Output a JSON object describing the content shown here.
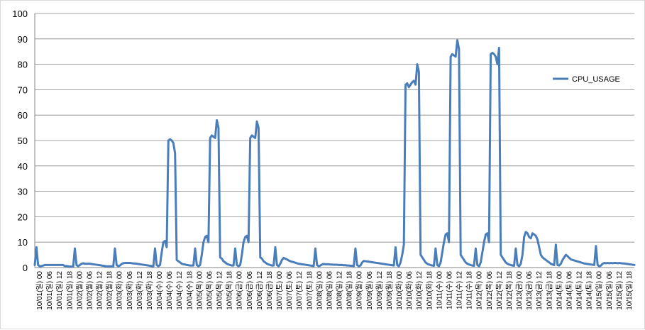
{
  "chart_data": {
    "type": "line",
    "ylim": [
      0,
      100
    ],
    "yticks": [
      0,
      10,
      20,
      30,
      40,
      50,
      60,
      70,
      80,
      90,
      100
    ],
    "grid": true,
    "legend_position": "right",
    "x_tick_labels": [
      "10/01(일) 00",
      "10/01(일) 06",
      "10/01(일) 12",
      "10/01(일) 18",
      "10/02(월) 00",
      "10/02(월) 06",
      "10/02(월) 12",
      "10/02(월) 18",
      "10/03(화) 00",
      "10/03(화) 06",
      "10/03(화) 12",
      "10/03(화) 18",
      "10/04(수) 00",
      "10/04(수) 06",
      "10/04(수) 12",
      "10/04(수) 18",
      "10/05(목) 00",
      "10/05(목) 06",
      "10/05(목) 12",
      "10/05(목) 18",
      "10/06(금) 00",
      "10/06(금) 06",
      "10/06(금) 12",
      "10/06(금) 18",
      "10/07(토) 00",
      "10/07(토) 06",
      "10/07(토) 12",
      "10/07(토) 18",
      "10/08(일) 00",
      "10/08(일) 06",
      "10/08(일) 12",
      "10/08(일) 18",
      "10/09(월) 00",
      "10/09(월) 06",
      "10/09(월) 12",
      "10/09(월) 18",
      "10/10(화) 00",
      "10/10(화) 06",
      "10/10(화) 12",
      "10/10(화) 18",
      "10/11(수) 00",
      "10/11(수) 06",
      "10/11(수) 12",
      "10/11(수) 18",
      "10/12(목) 00",
      "10/12(목) 06",
      "10/12(목) 12",
      "10/12(목) 18",
      "10/13(금) 00",
      "10/13(금) 06",
      "10/13(금) 12",
      "10/13(금) 18",
      "10/14(토) 00",
      "10/14(토) 06",
      "10/14(토) 12",
      "10/14(토) 18",
      "10/15(일) 00",
      "10/15(일) 06",
      "10/15(일) 12",
      "10/15(일) 18"
    ],
    "series": [
      {
        "name": "CPU_USAGE",
        "color": "#4a7ebb",
        "values": [
          1,
          8,
          1,
          0.5,
          0.6,
          0.8,
          1,
          1,
          1,
          1,
          1,
          1,
          1,
          1,
          1,
          1,
          1,
          1,
          0.6,
          0.6,
          0.5,
          0.4,
          0.4,
          0.4,
          7.5,
          1,
          0.5,
          1,
          1.5,
          1.7,
          1.5,
          1.5,
          1.5,
          1.5,
          1.4,
          1.3,
          1.2,
          1.1,
          1,
          0.9,
          0.8,
          0.7,
          0.6,
          0.5,
          0.5,
          0.5,
          0.5,
          0.4,
          7.5,
          1,
          0.5,
          0.8,
          1.4,
          1.7,
          1.8,
          1.8,
          1.8,
          1.8,
          1.7,
          1.6,
          1.6,
          1.5,
          1.4,
          1.3,
          1.2,
          1.1,
          1,
          0.9,
          0.8,
          0.7,
          0.6,
          0.5,
          7.5,
          1,
          0.5,
          1,
          6,
          10,
          10.5,
          8,
          50,
          50.5,
          50,
          49,
          45,
          3,
          2.5,
          2,
          1.5,
          1.3,
          1.2,
          1,
          0.9,
          0.8,
          0.8,
          0.8,
          7.5,
          1,
          0.5,
          1,
          5,
          10,
          12,
          12.5,
          10,
          51,
          52,
          51.5,
          51,
          58,
          55,
          4,
          3.5,
          2.5,
          2,
          1.5,
          1.2,
          1,
          0.8,
          0.8,
          7.5,
          1,
          0.5,
          1,
          5,
          10,
          12,
          12.5,
          10,
          51,
          52,
          51.5,
          51,
          57.5,
          55,
          4,
          3.5,
          2.5,
          2,
          1.5,
          1.2,
          1,
          0.8,
          0.8,
          8,
          1,
          0.5,
          1.5,
          3,
          3.8,
          3.5,
          3.2,
          2.8,
          2.5,
          2.3,
          2.1,
          1.9,
          1.7,
          1.5,
          1.4,
          1.3,
          1.2,
          1.1,
          1,
          0.9,
          0.8,
          0.7,
          0.6,
          7.5,
          1,
          0.5,
          0.8,
          1.2,
          1.4,
          1.3,
          1.3,
          1.3,
          1.2,
          1.2,
          1.1,
          1.1,
          1.1,
          1,
          1,
          1,
          0.9,
          0.9,
          0.8,
          0.8,
          0.7,
          0.7,
          0.6,
          7.5,
          1,
          0.5,
          0.8,
          2,
          2.6,
          2.5,
          2.4,
          2.3,
          2.2,
          2.1,
          2,
          1.9,
          1.8,
          1.7,
          1.6,
          1.5,
          1.4,
          1.3,
          1.2,
          1.1,
          1,
          0.9,
          0.8,
          8,
          1,
          0.5,
          2,
          5,
          9,
          72,
          72.5,
          71,
          72,
          73,
          73.5,
          72,
          80,
          77,
          5,
          4,
          3,
          2,
          1.5,
          1.2,
          1,
          0.8,
          0.7,
          7.5,
          1,
          0.5,
          2,
          6,
          10,
          13,
          13.5,
          10,
          83,
          84,
          83.5,
          83,
          89.5,
          86,
          5,
          4,
          3,
          2,
          1.5,
          1.2,
          1,
          0.8,
          0.7,
          7.5,
          1,
          0.5,
          2,
          6,
          10,
          13,
          13.5,
          10,
          84,
          84.5,
          84,
          83,
          80,
          86.5,
          5,
          4,
          3,
          2,
          1.5,
          1.2,
          1,
          0.8,
          0.7,
          7.5,
          1,
          0.5,
          1.5,
          5,
          12,
          14,
          13.5,
          12,
          11.5,
          13.5,
          13,
          12.5,
          11,
          8,
          5,
          4,
          3.5,
          3,
          2.5,
          2,
          1.5,
          1.2,
          1,
          9,
          1,
          0.8,
          1.5,
          3,
          4,
          5,
          4.5,
          3.8,
          3.2,
          3,
          2.8,
          2.6,
          2.4,
          2.2,
          2,
          1.8,
          1.6,
          1.5,
          1.4,
          1.3,
          1.2,
          1.1,
          1,
          8.5,
          1,
          0.5,
          0.8,
          1.5,
          1.8,
          1.7,
          1.8,
          1.7,
          1.8,
          1.7,
          1.8,
          1.8,
          1.7,
          1.8,
          1.7,
          1.6,
          1.6,
          1.5,
          1.4,
          1.3,
          1.2,
          1.1,
          1
        ]
      }
    ]
  }
}
